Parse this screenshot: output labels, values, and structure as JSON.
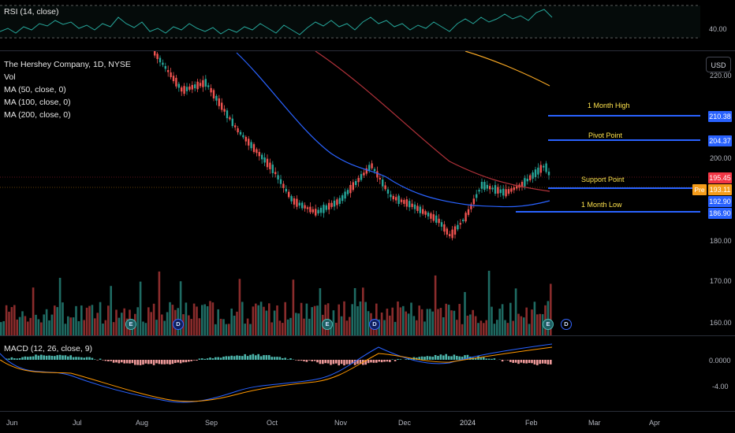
{
  "rsi": {
    "title": "RSI (14, close)",
    "axis_label": "40.00"
  },
  "main": {
    "symbol_line": "The Hershey Company, 1D, NYSE",
    "indicators": [
      "Vol",
      "MA (50, close, 0)",
      "MA (100, close, 0)",
      "MA (200, close, 0)"
    ],
    "currency_button": "USD",
    "price_axis": [
      "220.00",
      "200.00",
      "180.00",
      "170.00",
      "160.00"
    ],
    "price_tags": [
      {
        "value": "210.38",
        "color": "#2962ff"
      },
      {
        "value": "204.37",
        "color": "#2962ff"
      },
      {
        "value": "195.45",
        "color": "#f23645"
      },
      {
        "value": "193.11",
        "color": "#f59c1a"
      },
      {
        "value": "192.90",
        "color": "#2962ff"
      },
      {
        "value": "186.90",
        "color": "#2962ff"
      }
    ],
    "pre_label": "Pre",
    "annotations": {
      "month_high": "1 Month High",
      "pivot": "Pivot Point",
      "support": "Support Point",
      "month_low": "1 Month Low"
    },
    "event_badges": {
      "earnings": "E",
      "dividend": "D"
    }
  },
  "macd": {
    "title": "MACD (12, 26, close, 9)",
    "axis_labels": [
      "0.0000",
      "-4.00"
    ]
  },
  "time_axis": [
    "Jun",
    "Jul",
    "Aug",
    "Sep",
    "Oct",
    "Nov",
    "Dec",
    "2024",
    "Feb",
    "Mar",
    "Apr"
  ],
  "colors": {
    "up": "#26a69a",
    "down": "#ef5350",
    "ma50": "#2962ff",
    "ma100": "#b2323a",
    "ma200": "#f5a623",
    "rsi": "#26a69a"
  },
  "chart_data": {
    "type": "candlestick",
    "levels": {
      "month_high": 210.38,
      "pivot": 204.37,
      "last": 195.45,
      "pre": 193.11,
      "support": 192.9,
      "month_low": 186.9
    }
  }
}
